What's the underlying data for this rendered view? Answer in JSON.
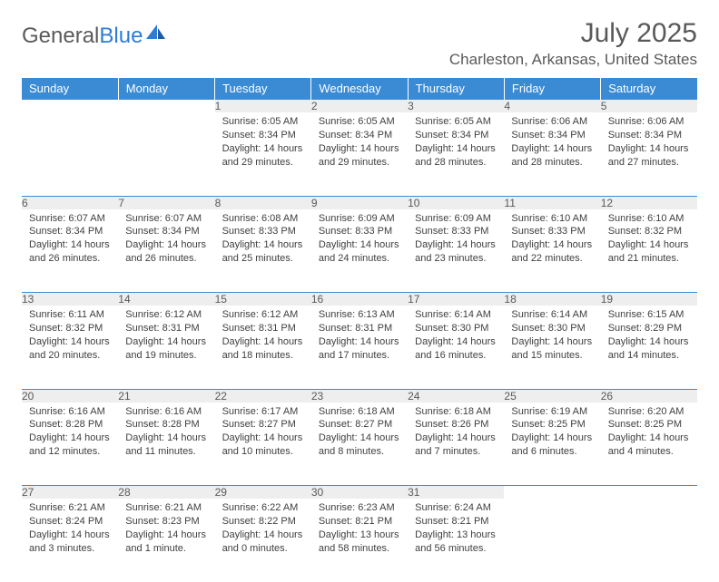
{
  "logo": {
    "text_gray": "General",
    "text_blue": "Blue"
  },
  "header": {
    "month_title": "July 2025",
    "location": "Charleston, Arkansas, United States"
  },
  "colors": {
    "header_bg": "#3b8bd4",
    "header_text": "#ffffff",
    "daynum_bg": "#eeeeee",
    "text": "#595959",
    "body_text": "#404040",
    "rule": "#3b8bd4"
  },
  "day_headers": [
    "Sunday",
    "Monday",
    "Tuesday",
    "Wednesday",
    "Thursday",
    "Friday",
    "Saturday"
  ],
  "weeks": [
    [
      null,
      null,
      {
        "n": "1",
        "sunrise": "6:05 AM",
        "sunset": "8:34 PM",
        "daylight": "14 hours and 29 minutes."
      },
      {
        "n": "2",
        "sunrise": "6:05 AM",
        "sunset": "8:34 PM",
        "daylight": "14 hours and 29 minutes."
      },
      {
        "n": "3",
        "sunrise": "6:05 AM",
        "sunset": "8:34 PM",
        "daylight": "14 hours and 28 minutes."
      },
      {
        "n": "4",
        "sunrise": "6:06 AM",
        "sunset": "8:34 PM",
        "daylight": "14 hours and 28 minutes."
      },
      {
        "n": "5",
        "sunrise": "6:06 AM",
        "sunset": "8:34 PM",
        "daylight": "14 hours and 27 minutes."
      }
    ],
    [
      {
        "n": "6",
        "sunrise": "6:07 AM",
        "sunset": "8:34 PM",
        "daylight": "14 hours and 26 minutes."
      },
      {
        "n": "7",
        "sunrise": "6:07 AM",
        "sunset": "8:34 PM",
        "daylight": "14 hours and 26 minutes."
      },
      {
        "n": "8",
        "sunrise": "6:08 AM",
        "sunset": "8:33 PM",
        "daylight": "14 hours and 25 minutes."
      },
      {
        "n": "9",
        "sunrise": "6:09 AM",
        "sunset": "8:33 PM",
        "daylight": "14 hours and 24 minutes."
      },
      {
        "n": "10",
        "sunrise": "6:09 AM",
        "sunset": "8:33 PM",
        "daylight": "14 hours and 23 minutes."
      },
      {
        "n": "11",
        "sunrise": "6:10 AM",
        "sunset": "8:33 PM",
        "daylight": "14 hours and 22 minutes."
      },
      {
        "n": "12",
        "sunrise": "6:10 AM",
        "sunset": "8:32 PM",
        "daylight": "14 hours and 21 minutes."
      }
    ],
    [
      {
        "n": "13",
        "sunrise": "6:11 AM",
        "sunset": "8:32 PM",
        "daylight": "14 hours and 20 minutes."
      },
      {
        "n": "14",
        "sunrise": "6:12 AM",
        "sunset": "8:31 PM",
        "daylight": "14 hours and 19 minutes."
      },
      {
        "n": "15",
        "sunrise": "6:12 AM",
        "sunset": "8:31 PM",
        "daylight": "14 hours and 18 minutes."
      },
      {
        "n": "16",
        "sunrise": "6:13 AM",
        "sunset": "8:31 PM",
        "daylight": "14 hours and 17 minutes."
      },
      {
        "n": "17",
        "sunrise": "6:14 AM",
        "sunset": "8:30 PM",
        "daylight": "14 hours and 16 minutes."
      },
      {
        "n": "18",
        "sunrise": "6:14 AM",
        "sunset": "8:30 PM",
        "daylight": "14 hours and 15 minutes."
      },
      {
        "n": "19",
        "sunrise": "6:15 AM",
        "sunset": "8:29 PM",
        "daylight": "14 hours and 14 minutes."
      }
    ],
    [
      {
        "n": "20",
        "sunrise": "6:16 AM",
        "sunset": "8:28 PM",
        "daylight": "14 hours and 12 minutes."
      },
      {
        "n": "21",
        "sunrise": "6:16 AM",
        "sunset": "8:28 PM",
        "daylight": "14 hours and 11 minutes."
      },
      {
        "n": "22",
        "sunrise": "6:17 AM",
        "sunset": "8:27 PM",
        "daylight": "14 hours and 10 minutes."
      },
      {
        "n": "23",
        "sunrise": "6:18 AM",
        "sunset": "8:27 PM",
        "daylight": "14 hours and 8 minutes."
      },
      {
        "n": "24",
        "sunrise": "6:18 AM",
        "sunset": "8:26 PM",
        "daylight": "14 hours and 7 minutes."
      },
      {
        "n": "25",
        "sunrise": "6:19 AM",
        "sunset": "8:25 PM",
        "daylight": "14 hours and 6 minutes."
      },
      {
        "n": "26",
        "sunrise": "6:20 AM",
        "sunset": "8:25 PM",
        "daylight": "14 hours and 4 minutes."
      }
    ],
    [
      {
        "n": "27",
        "sunrise": "6:21 AM",
        "sunset": "8:24 PM",
        "daylight": "14 hours and 3 minutes."
      },
      {
        "n": "28",
        "sunrise": "6:21 AM",
        "sunset": "8:23 PM",
        "daylight": "14 hours and 1 minute."
      },
      {
        "n": "29",
        "sunrise": "6:22 AM",
        "sunset": "8:22 PM",
        "daylight": "14 hours and 0 minutes."
      },
      {
        "n": "30",
        "sunrise": "6:23 AM",
        "sunset": "8:21 PM",
        "daylight": "13 hours and 58 minutes."
      },
      {
        "n": "31",
        "sunrise": "6:24 AM",
        "sunset": "8:21 PM",
        "daylight": "13 hours and 56 minutes."
      },
      null,
      null
    ]
  ],
  "labels": {
    "sunrise": "Sunrise:",
    "sunset": "Sunset:",
    "daylight": "Daylight:"
  }
}
